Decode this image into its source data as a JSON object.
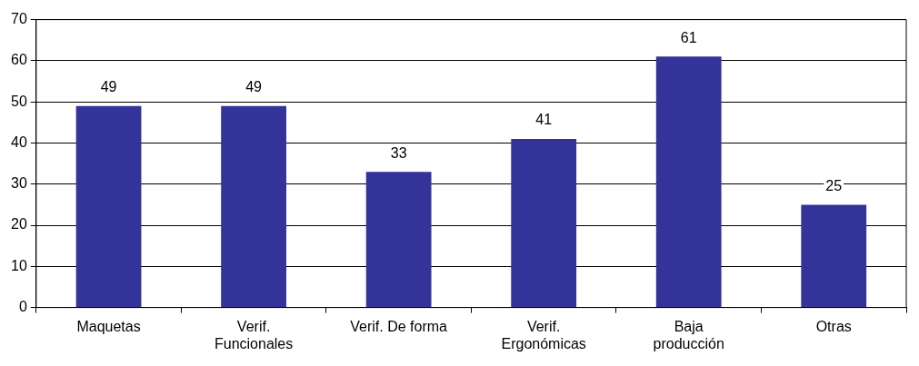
{
  "chart_data": {
    "type": "bar",
    "categories": [
      "Maquetas",
      "Verif. Funcionales",
      "Verif. De forma",
      "Verif. Ergonómicas",
      "Baja producción",
      "Otras"
    ],
    "values": [
      49,
      49,
      33,
      41,
      61,
      25
    ],
    "color": "#333399",
    "ylim": [
      0,
      70
    ],
    "yticks": [
      0,
      10,
      20,
      30,
      40,
      50,
      60,
      70
    ],
    "grid": "y",
    "data_labels": true,
    "legend": false
  }
}
